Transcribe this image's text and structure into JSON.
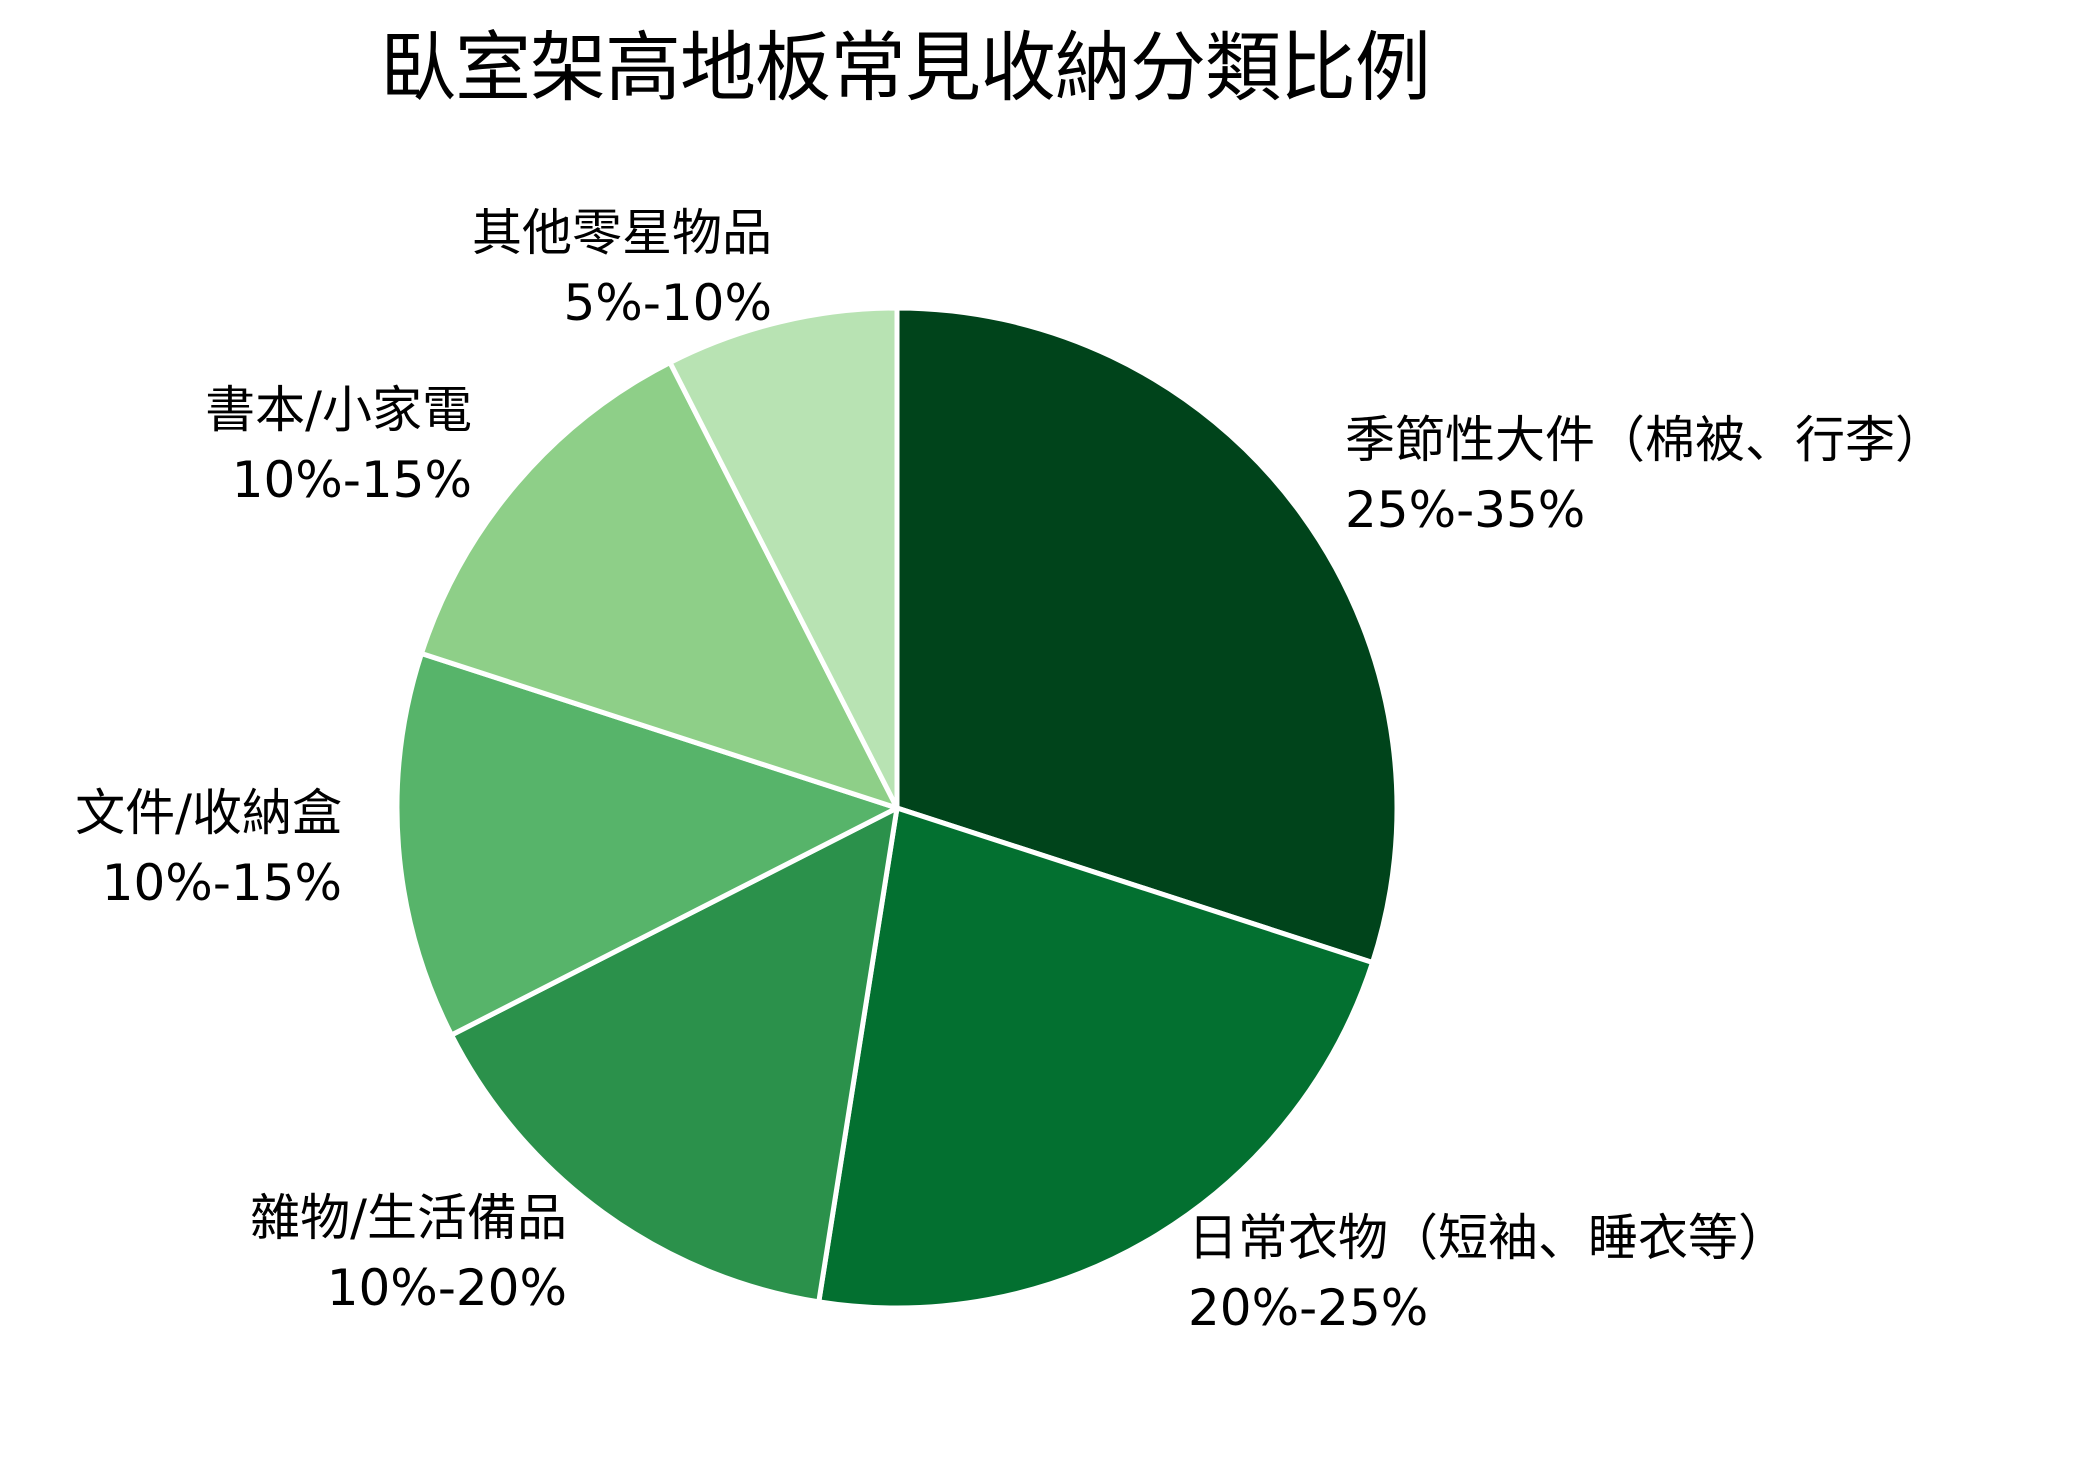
{
  "chart_data": {
    "type": "pie",
    "title": "臥室架高地板常見收納分類比例",
    "start_angle": "12 o'clock, clockwise",
    "slices": [
      {
        "label": "季節性大件（棉被、行李）",
        "range_label": "25%-35%",
        "value": 30,
        "color": "#00441b"
      },
      {
        "label": "日常衣物（短袖、睡衣等）",
        "range_label": "20%-25%",
        "value": 22.5,
        "color": "#037030"
      },
      {
        "label": "雜物/生活備品",
        "range_label": "10%-20%",
        "value": 15,
        "color": "#2b914b"
      },
      {
        "label": "文件/收納盒",
        "range_label": "10%-15%",
        "value": 12.5,
        "color": "#57b46a"
      },
      {
        "label": "書本/小家電",
        "range_label": "10%-15%",
        "value": 12.5,
        "color": "#8ecf88"
      },
      {
        "label": "其他零星物品",
        "range_label": "5%-10%",
        "value": 7.5,
        "color": "#b8e3b3"
      }
    ],
    "categories": [
      "季節性大件（棉被、行李）",
      "日常衣物（短袖、睡衣等）",
      "雜物/生活備品",
      "文件/收納盒",
      "書本/小家電",
      "其他零星物品"
    ],
    "values": [
      30,
      22.5,
      15,
      12.5,
      12.5,
      7.5
    ],
    "legend": "none (labels placed beside slices)",
    "separator_color": "#ffffff"
  },
  "title": "臥室架高地板常見收納分類比例",
  "labels": [
    {
      "name": "季節性大件（棉被、行李）",
      "range": "25%-35%"
    },
    {
      "name": "日常衣物（短袖、睡衣等）",
      "range": "20%-25%"
    },
    {
      "name": "雜物/生活備品",
      "range": "10%-20%"
    },
    {
      "name": "文件/收納盒",
      "range": "10%-15%"
    },
    {
      "name": "書本/小家電",
      "range": "10%-15%"
    },
    {
      "name": "其他零星物品",
      "range": "5%-10%"
    }
  ]
}
